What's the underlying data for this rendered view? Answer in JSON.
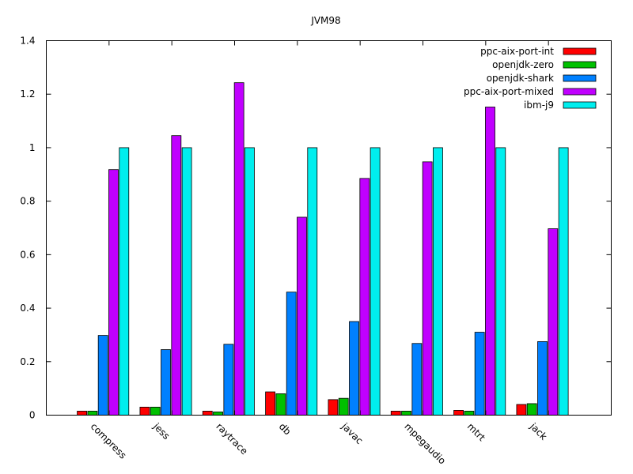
{
  "chart_data": {
    "type": "bar",
    "title": "JVM98",
    "xlabel": "",
    "ylabel": "",
    "ylim": [
      0,
      1.4
    ],
    "yticks": [
      0,
      0.2,
      0.4,
      0.6,
      0.8,
      1,
      1.2,
      1.4
    ],
    "ytick_labels": [
      "0",
      "0.2",
      "0.4",
      "0.6",
      "0.8",
      "1",
      "1.2",
      "1.4"
    ],
    "categories": [
      "compress",
      "jess",
      "raytrace",
      "db",
      "javac",
      "mpegaudio",
      "mtrt",
      "jack"
    ],
    "legend_position": "top-right",
    "grid": false,
    "series": [
      {
        "name": "ppc-aix-port-int",
        "color": "#ff0000",
        "values": [
          0.015,
          0.03,
          0.015,
          0.087,
          0.058,
          0.015,
          0.018,
          0.04
        ]
      },
      {
        "name": "openjdk-zero",
        "color": "#00c000",
        "values": [
          0.015,
          0.03,
          0.012,
          0.08,
          0.063,
          0.015,
          0.015,
          0.043
        ]
      },
      {
        "name": "openjdk-shark",
        "color": "#0080ff",
        "values": [
          0.298,
          0.245,
          0.265,
          0.46,
          0.35,
          0.268,
          0.31,
          0.275
        ]
      },
      {
        "name": "ppc-aix-port-mixed",
        "color": "#c000ff",
        "values": [
          0.918,
          1.045,
          1.243,
          0.74,
          0.885,
          0.947,
          1.152,
          0.697
        ]
      },
      {
        "name": "ibm-j9",
        "color": "#00eeee",
        "values": [
          1.0,
          1.0,
          1.0,
          1.0,
          1.0,
          1.0,
          1.0,
          1.0
        ]
      }
    ]
  }
}
